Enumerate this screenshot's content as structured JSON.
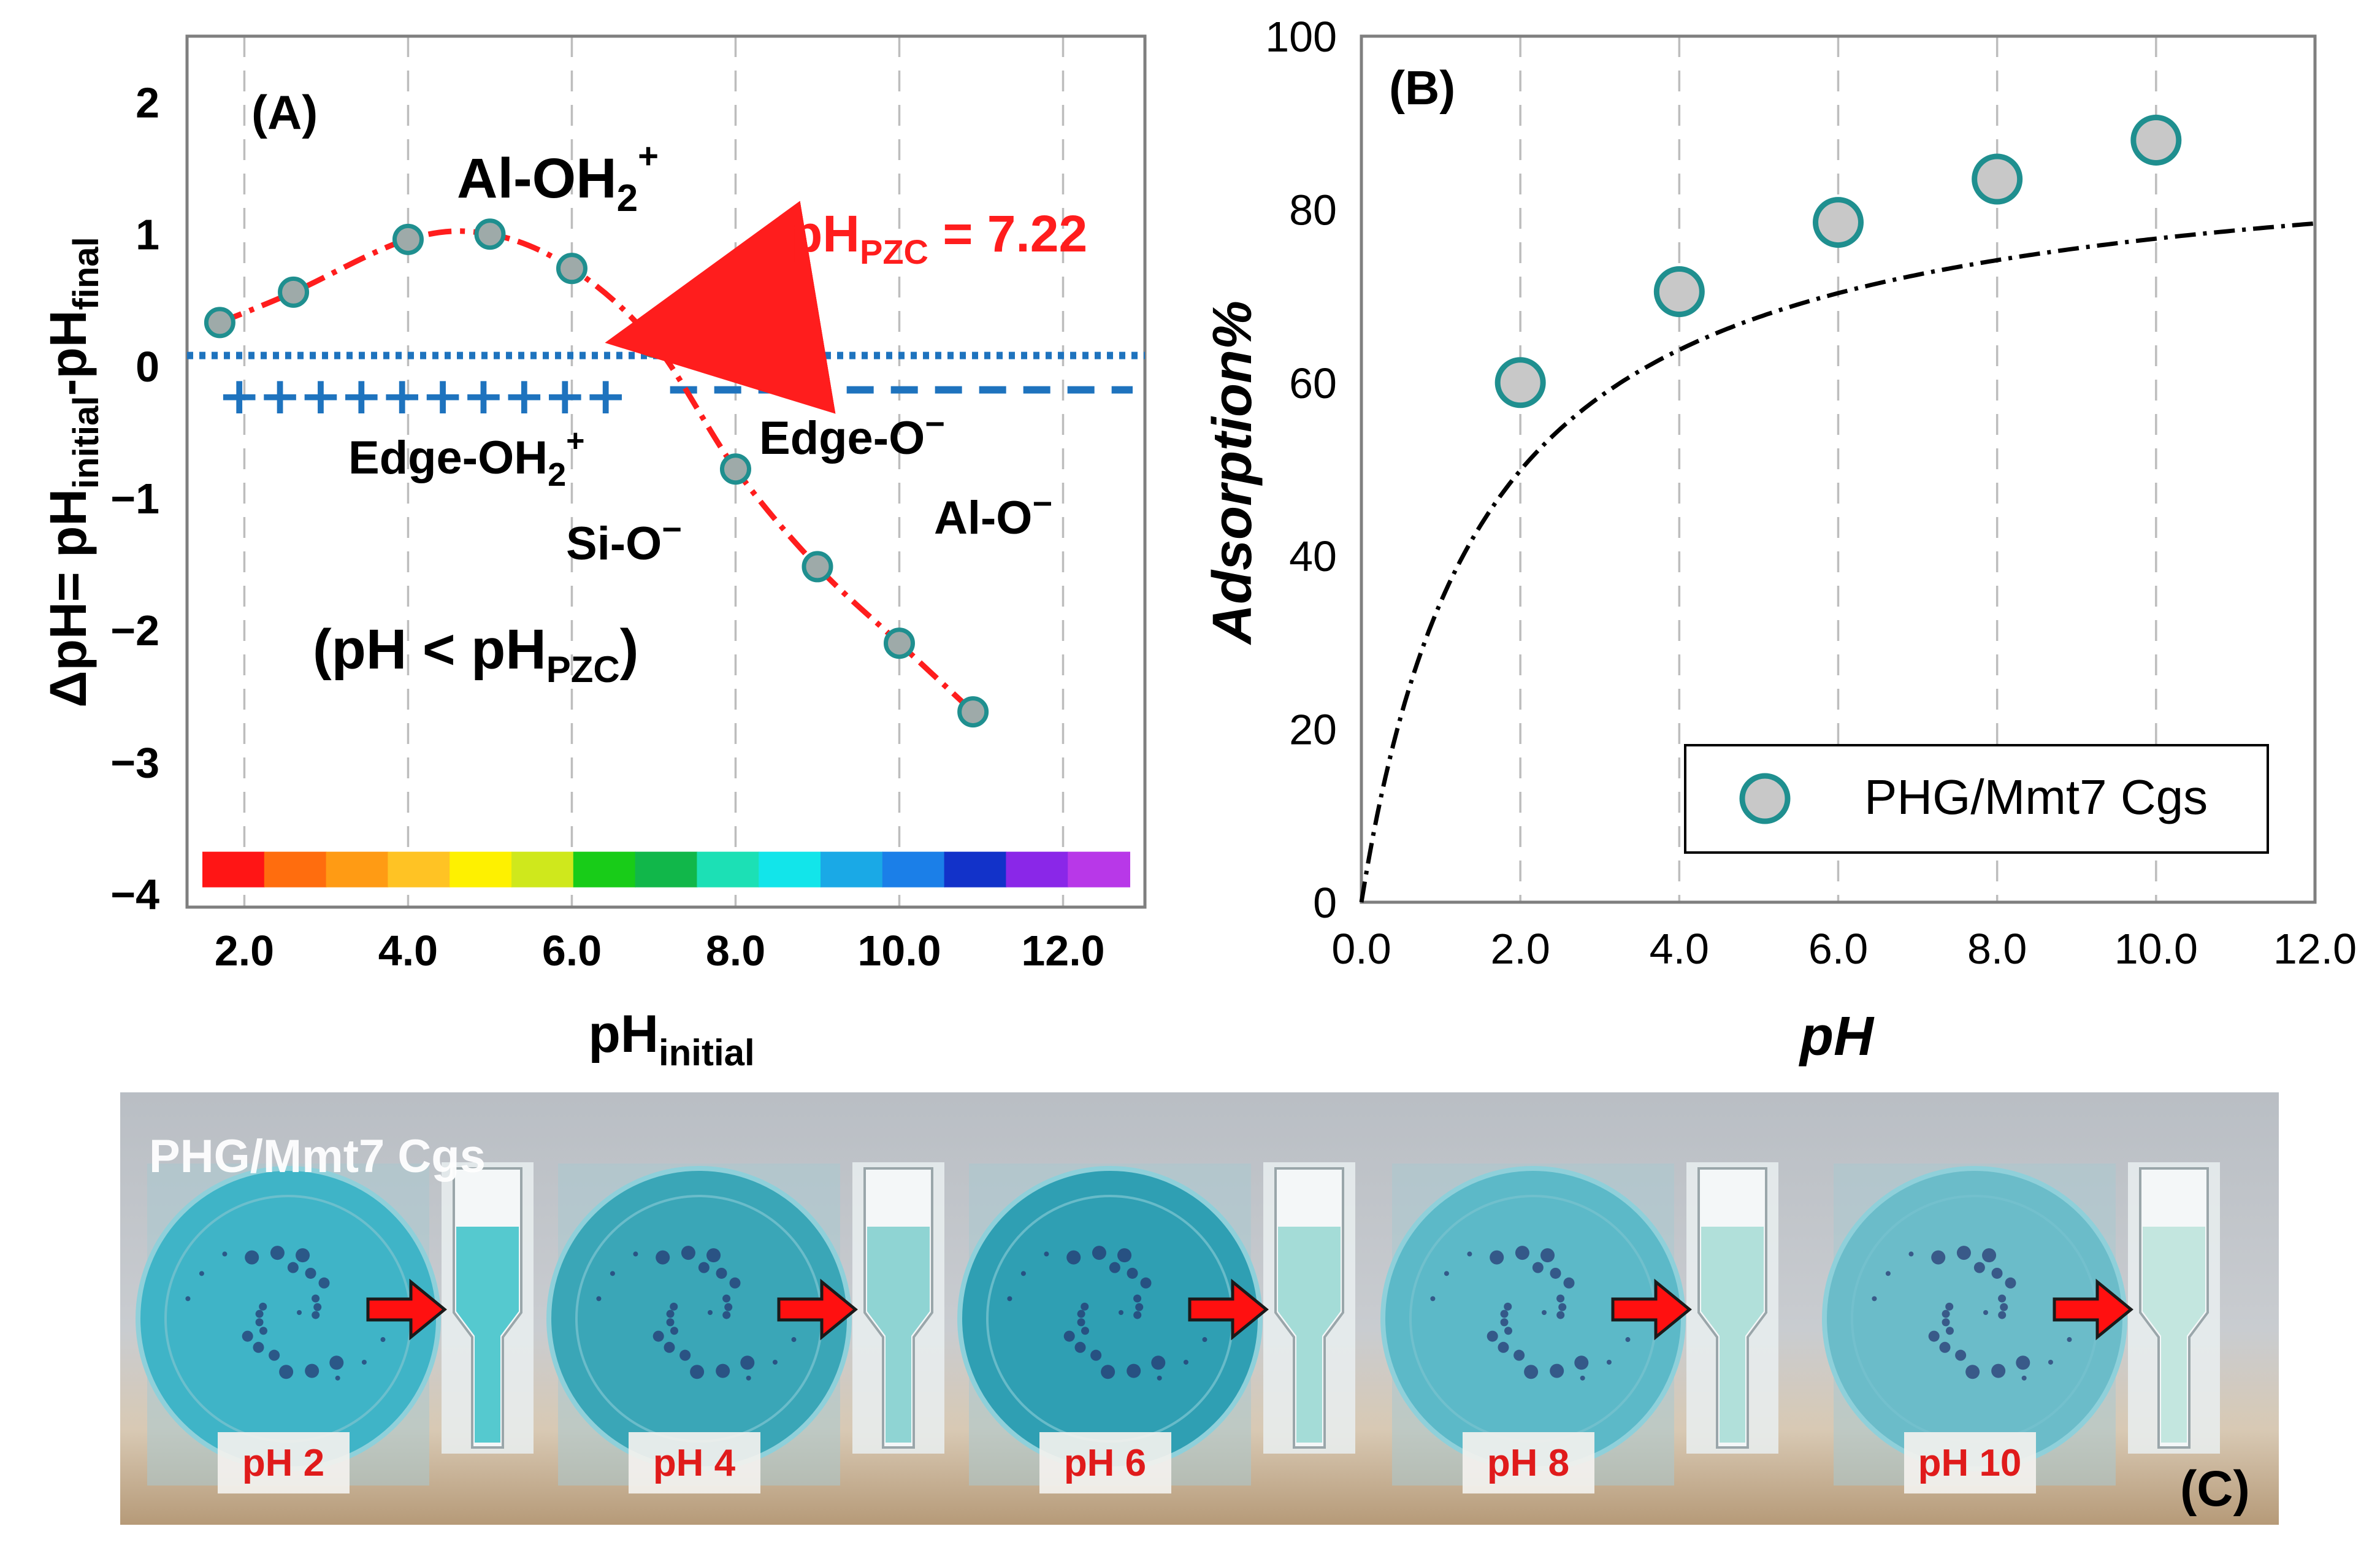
{
  "chart_data": [
    {
      "panel": "(A)",
      "type": "line",
      "xlabel": "pH",
      "xlabel_sub": "initial",
      "ylabel": "ΔpH= pH",
      "ylabel_sub1": "initial",
      "ylabel_mid": "-pH",
      "ylabel_sub2": "final",
      "xlim": [
        1.3,
        13.0
      ],
      "ylim": [
        -4.1,
        2.5
      ],
      "xticks": [
        "2.0",
        "4.0",
        "6.0",
        "8.0",
        "10.0",
        "12.0"
      ],
      "yticks": [
        "2",
        "1",
        "0",
        "−1",
        "−2",
        "−3",
        "−4"
      ],
      "grid": "vertical dashed",
      "series": [
        {
          "x": [
            1.7,
            2.6,
            4.0,
            5.0,
            6.0,
            7.0,
            8.0,
            9.0,
            10.0,
            10.9
          ],
          "y": [
            0.33,
            0.56,
            0.96,
            1.0,
            0.74,
            0.18,
            -0.78,
            -1.52,
            -2.1,
            -2.62
          ],
          "marker_color": "#9eaaa9",
          "marker_edge": "#1f8f8f",
          "line_color": "#ff1d1d",
          "line_style": "dash-dot"
        }
      ],
      "reference_lines": [
        {
          "y": 0.08,
          "color": "#1e73be",
          "style": "dotted"
        },
        {
          "y": -0.18,
          "x_from": 7.2,
          "color": "#1e73be",
          "style": "dashed"
        }
      ],
      "plus_signs": "++++++++++",
      "annotations": {
        "al_oh2": "Al-OH",
        "al_oh2_sub": "2",
        "al_oh2_sup": "+",
        "pzc_prefix": "pH",
        "pzc_sub": "PZC",
        "pzc_suffix": " = 7.22",
        "edge_oh2": "Edge-OH",
        "edge_oh2_sub": "2",
        "edge_oh2_sup": "+",
        "edge_o": "Edge-O",
        "edge_o_sup": "−",
        "si_o": "Si-O",
        "si_o_sup": "−",
        "al_o": "Al-O",
        "al_o_sup": "−",
        "cond_prefix": "(pH < pH",
        "cond_sub": "PZC",
        "cond_suffix": ")"
      },
      "colorbar": [
        "#ff1515",
        "#ff6d0e",
        "#ff9b14",
        "#ffc324",
        "#fef100",
        "#cfe81c",
        "#18cc18",
        "#11b74a",
        "#1ce0b5",
        "#12e5ea",
        "#1aa9e6",
        "#1b7fe8",
        "#1232c9",
        "#8a27e8",
        "#b838e8"
      ],
      "colors": {
        "accent": "#ff1d1d",
        "zero_line": "#1e73be"
      }
    },
    {
      "panel": "(B)",
      "type": "scatter",
      "xlabel": "pH",
      "ylabel": "Adsorption%",
      "xlim": [
        0.0,
        12.0
      ],
      "ylim": [
        0,
        100
      ],
      "xticks": [
        "0.0",
        "2.0",
        "4.0",
        "6.0",
        "8.0",
        "10.0",
        "12.0"
      ],
      "yticks": [
        "100",
        "80",
        "60",
        "40",
        "20",
        "0"
      ],
      "grid": "vertical dashed",
      "legend": "bottom-right",
      "series": [
        {
          "name": "PHG/Mmt7 Cgs",
          "x": [
            2.0,
            4.0,
            6.0,
            8.0,
            10.0
          ],
          "y": [
            60.0,
            70.5,
            78.5,
            83.5,
            88.0
          ],
          "marker_color": "#c8c8c8",
          "marker_edge": "#1f8f8f"
        }
      ],
      "fit_line": {
        "style": "dash-dot",
        "color": "#000000",
        "model": "saturation",
        "ymax": 88.5,
        "k": 1.55
      }
    }
  ],
  "photo_panel": {
    "panel": "(C)",
    "title": "PHG/Mmt7 Cgs",
    "samples": [
      {
        "label": "pH 2",
        "dish_color": "#3fb4c7",
        "liquid_color": "#55c9cf"
      },
      {
        "label": "pH 4",
        "dish_color": "#3aa6b7",
        "liquid_color": "#8fd4d3"
      },
      {
        "label": "pH 6",
        "dish_color": "#2f9fb3",
        "liquid_color": "#a4dcd7"
      },
      {
        "label": "pH 8",
        "dish_color": "#5cb9c8",
        "liquid_color": "#b1e0da"
      },
      {
        "label": "pH 10",
        "dish_color": "#6bbcc9",
        "liquid_color": "#c3e6df"
      }
    ]
  }
}
